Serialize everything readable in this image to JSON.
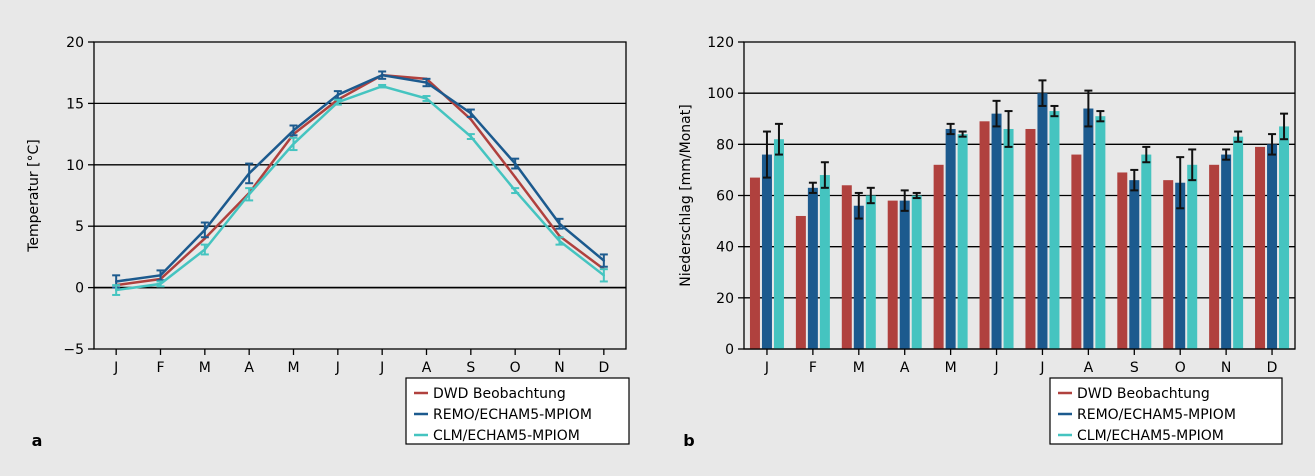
{
  "legend": [
    "DWD Beobachtung",
    "REMO/ECHAM5-MPIOM",
    "CLM/ECHAM5-MPIOM"
  ],
  "colors": {
    "dwd": "#b0413e",
    "remo": "#1c5a8e",
    "clm": "#45c4c0"
  },
  "chart_data": [
    {
      "type": "line",
      "panel_label": "a",
      "ylabel": "Temperatur [°C]",
      "xlabel": "",
      "categories": [
        "J",
        "F",
        "M",
        "A",
        "M",
        "J",
        "J",
        "A",
        "S",
        "O",
        "N",
        "D"
      ],
      "ylim": [
        -5,
        20
      ],
      "yticks": [
        -5,
        0,
        5,
        10,
        15,
        20
      ],
      "grid": "horizontal",
      "legend_position": "bottom-right, below plot",
      "series": [
        {
          "name": "DWD Beobachtung",
          "values": [
            0.2,
            0.7,
            4.0,
            7.7,
            12.5,
            15.3,
            17.3,
            17.0,
            13.7,
            9.0,
            4.2,
            1.5
          ]
        },
        {
          "name": "REMO/ECHAM5-MPIOM",
          "values": [
            0.5,
            1.0,
            4.7,
            9.3,
            12.8,
            15.7,
            17.3,
            16.7,
            14.2,
            10.1,
            5.2,
            2.2
          ],
          "error": [
            0.5,
            0.4,
            0.6,
            0.8,
            0.4,
            0.3,
            0.3,
            0.3,
            0.3,
            0.4,
            0.4,
            0.5
          ]
        },
        {
          "name": "CLM/ECHAM5-MPIOM",
          "values": [
            -0.2,
            0.3,
            3.1,
            7.6,
            11.7,
            15.1,
            16.4,
            15.4,
            12.3,
            7.9,
            3.8,
            1.0
          ],
          "error": [
            0.4,
            0.2,
            0.4,
            0.5,
            0.5,
            0.2,
            0.1,
            0.2,
            0.2,
            0.2,
            0.3,
            0.5
          ]
        }
      ]
    },
    {
      "type": "bar",
      "panel_label": "b",
      "ylabel": "Niederschlag [mm/Monat]",
      "xlabel": "",
      "categories": [
        "J",
        "F",
        "M",
        "A",
        "M",
        "J",
        "J",
        "A",
        "S",
        "O",
        "N",
        "D"
      ],
      "ylim": [
        0,
        120
      ],
      "yticks": [
        0,
        20,
        40,
        60,
        80,
        100,
        120
      ],
      "grid": "horizontal",
      "legend_position": "bottom-right, below plot",
      "series": [
        {
          "name": "DWD Beobachtung",
          "values": [
            67,
            52,
            64,
            58,
            72,
            89,
            86,
            76,
            69,
            66,
            72,
            79
          ]
        },
        {
          "name": "REMO/ECHAM5-MPIOM",
          "values": [
            76,
            63,
            56,
            58,
            86,
            92,
            100,
            94,
            66,
            65,
            76,
            80
          ],
          "error": [
            9,
            2,
            5,
            4,
            2,
            5,
            5,
            7,
            4,
            10,
            2,
            4
          ]
        },
        {
          "name": "CLM/ECHAM5-MPIOM",
          "values": [
            82,
            68,
            60,
            60,
            84,
            86,
            93,
            91,
            76,
            72,
            83,
            87
          ],
          "error": [
            6,
            5,
            3,
            1,
            1,
            7,
            2,
            2,
            3,
            6,
            2,
            5
          ]
        }
      ]
    }
  ]
}
